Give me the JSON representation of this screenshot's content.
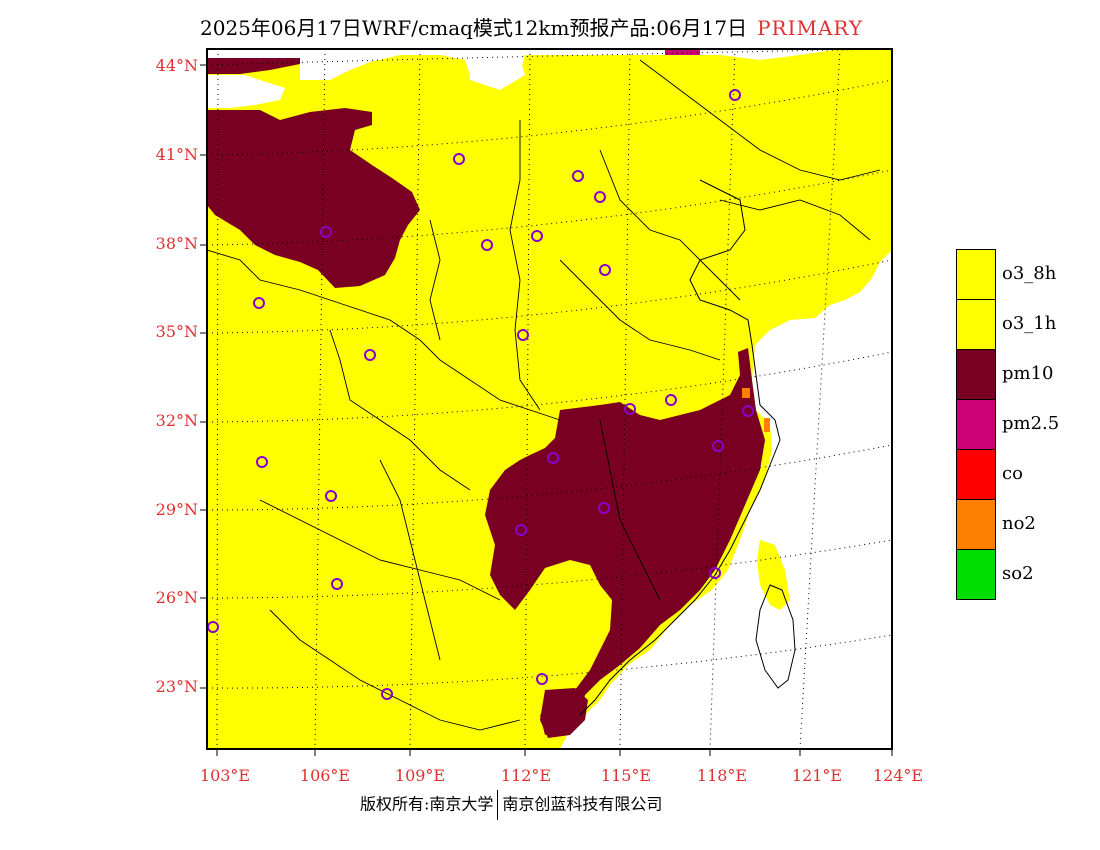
{
  "title": {
    "main": "2025年06月17日WRF/cmaq模式12km预报产品:06月17日",
    "tag": "PRIMARY"
  },
  "map": {
    "lat_labels": [
      "44°N",
      "41°N",
      "38°N",
      "35°N",
      "32°N",
      "29°N",
      "26°N",
      "23°N"
    ],
    "lon_labels": [
      "103°E",
      "106°E",
      "109°E",
      "112°E",
      "115°E",
      "118°E",
      "121°E",
      "124°E"
    ],
    "fill_colors": {
      "o3": "#ffff00",
      "pm10": "#7a0023",
      "land_blank": "#ffffff"
    }
  },
  "legend": {
    "items": [
      {
        "label": "o3_8h",
        "color": "#ffff00"
      },
      {
        "label": "o3_1h",
        "color": "#ffff00"
      },
      {
        "label": "pm10",
        "color": "#7a0023"
      },
      {
        "label": "pm2.5",
        "color": "#cc0077"
      },
      {
        "label": "co",
        "color": "#ff0000"
      },
      {
        "label": "no2",
        "color": "#ff7f00"
      },
      {
        "label": "so2",
        "color": "#00dd00"
      }
    ]
  },
  "footer": {
    "left": "版权所有:南京大学",
    "right": "南京创蓝科技有限公司"
  }
}
